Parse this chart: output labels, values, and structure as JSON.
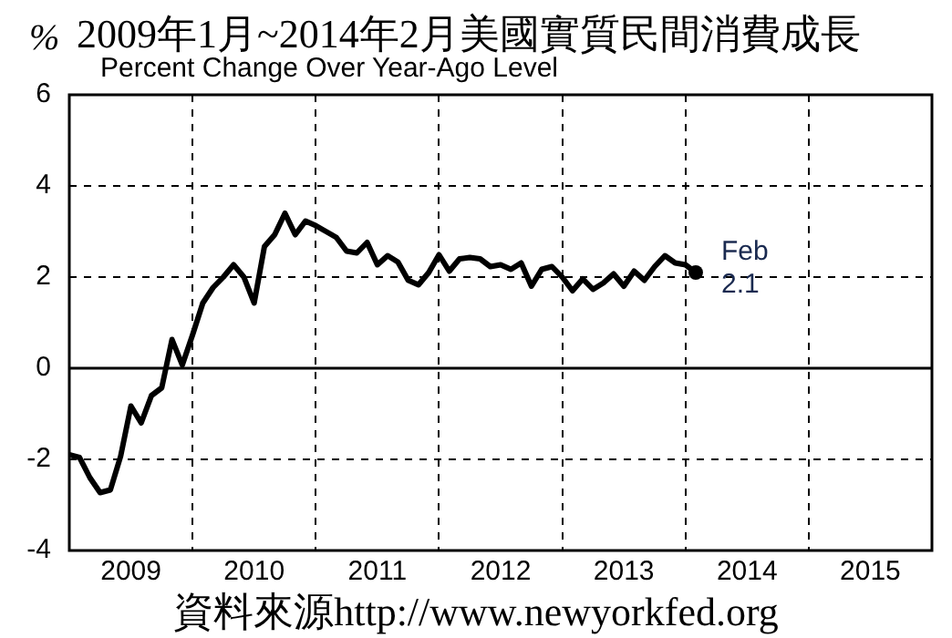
{
  "chart_data": {
    "type": "line",
    "title": "2009年1月~2014年2月美國實質民間消費成長",
    "subtitle": "Percent Change Over Year-Ago Level",
    "ylabel": "%",
    "x": [
      "2009-01",
      "2009-02",
      "2009-03",
      "2009-04",
      "2009-05",
      "2009-06",
      "2009-07",
      "2009-08",
      "2009-09",
      "2009-10",
      "2009-11",
      "2009-12",
      "2010-01",
      "2010-02",
      "2010-03",
      "2010-04",
      "2010-05",
      "2010-06",
      "2010-07",
      "2010-08",
      "2010-09",
      "2010-10",
      "2010-11",
      "2010-12",
      "2011-01",
      "2011-02",
      "2011-03",
      "2011-04",
      "2011-05",
      "2011-06",
      "2011-07",
      "2011-08",
      "2011-09",
      "2011-10",
      "2011-11",
      "2011-12",
      "2012-01",
      "2012-02",
      "2012-03",
      "2012-04",
      "2012-05",
      "2012-06",
      "2012-07",
      "2012-08",
      "2012-09",
      "2012-10",
      "2012-11",
      "2012-12",
      "2013-01",
      "2013-02",
      "2013-03",
      "2013-04",
      "2013-05",
      "2013-06",
      "2013-07",
      "2013-08",
      "2013-09",
      "2013-10",
      "2013-11",
      "2013-12",
      "2014-01",
      "2014-02"
    ],
    "series": [
      {
        "color": "#000000",
        "values": [
          -1.9,
          -1.96,
          -2.4,
          -2.73,
          -2.67,
          -1.93,
          -0.83,
          -1.2,
          -0.6,
          -0.43,
          0.63,
          0.07,
          0.73,
          1.43,
          1.77,
          2.0,
          2.27,
          2.0,
          1.43,
          2.67,
          2.93,
          3.4,
          2.93,
          3.23,
          3.13,
          3.0,
          2.87,
          2.57,
          2.53,
          2.76,
          2.27,
          2.47,
          2.33,
          1.93,
          1.83,
          2.1,
          2.49,
          2.13,
          2.4,
          2.43,
          2.4,
          2.23,
          2.27,
          2.17,
          2.31,
          1.8,
          2.17,
          2.23,
          2.0,
          1.7,
          1.96,
          1.73,
          1.87,
          2.07,
          1.8,
          2.13,
          1.93,
          2.23,
          2.47,
          2.31,
          2.27,
          2.1
        ]
      }
    ],
    "xlim": [
      "2009-01",
      "2016-01"
    ],
    "xticks": [
      {
        "value": "2009-07",
        "label": "2009"
      },
      {
        "value": "2010-01",
        "label": null
      },
      {
        "value": "2010-07",
        "label": "2010"
      },
      {
        "value": "2011-01",
        "label": null
      },
      {
        "value": "2011-07",
        "label": "2011"
      },
      {
        "value": "2012-01",
        "label": null
      },
      {
        "value": "2012-07",
        "label": "2012"
      },
      {
        "value": "2013-01",
        "label": null
      },
      {
        "value": "2013-07",
        "label": "2013"
      },
      {
        "value": "2014-01",
        "label": null
      },
      {
        "value": "2014-07",
        "label": "2014"
      },
      {
        "value": "2015-01",
        "label": null
      },
      {
        "value": "2015-07",
        "label": "2015"
      }
    ],
    "ylim": [
      -4,
      6
    ],
    "yticks": [
      -4,
      -2,
      0,
      2,
      4,
      6
    ],
    "grid": true,
    "legend": false,
    "line_style": "solid",
    "ref_lines": [
      {
        "axis": "y",
        "value": 0
      }
    ],
    "annotations": [
      {
        "text": "Feb\n2.1",
        "x": "2014-02",
        "y": 2.1
      },
      "資料來源http://www.newyorkfed.org"
    ]
  }
}
